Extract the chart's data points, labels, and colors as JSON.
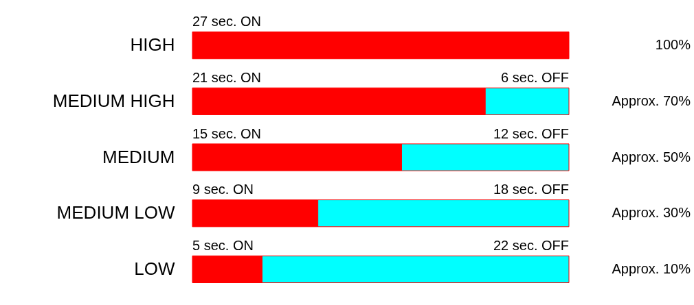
{
  "chart_data": {
    "type": "bar",
    "orientation": "horizontal",
    "stacked": true,
    "categories": [
      "HIGH",
      "MEDIUM HIGH",
      "MEDIUM",
      "MEDIUM LOW",
      "LOW"
    ],
    "series": [
      {
        "color": "#ff0000",
        "values": [
          27,
          21,
          15,
          9,
          5
        ],
        "value_labels": [
          "27 sec. ON",
          "21 sec. ON",
          "15 sec. ON",
          "9 sec. ON",
          "5 sec. ON"
        ]
      },
      {
        "color": "#00ffff",
        "values": [
          null,
          6,
          12,
          18,
          22
        ],
        "value_labels": [
          null,
          "6 sec. OFF",
          "12 sec. OFF",
          "18 sec. OFF",
          "22 sec. OFF"
        ]
      }
    ],
    "annotations": [
      "100%",
      "Approx. 70%",
      "Approx. 50%",
      "Approx. 30%",
      "Approx. 10%"
    ]
  }
}
